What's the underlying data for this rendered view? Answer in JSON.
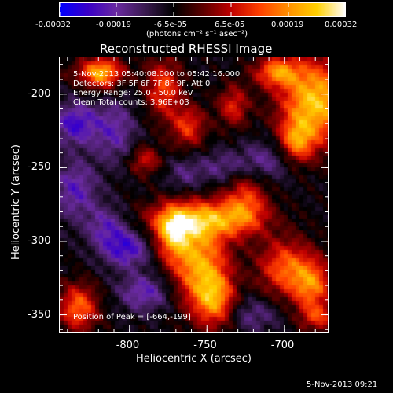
{
  "colorbar": {
    "tick_labels": [
      "-0.00032",
      "-0.00019",
      "-6.5e-05",
      "6.5e-05",
      "0.00019",
      "0.00032"
    ],
    "units_label": "(photons cm⁻² s⁻¹ asec⁻²)"
  },
  "title": "Reconstructed RHESSI Image",
  "info_lines": [
    "5-Nov-2013 05:40:08.000 to 05:42:16.000",
    "Detectors: 3F 5F 6F 7F 8F 9F, Att 0",
    "Energy Range: 25.0 - 50.0 keV",
    "Clean     Total counts: 3.96E+03"
  ],
  "peak_label": "Position of Peak = [-664,-199]",
  "footer_timestamp": "5-Nov-2013 09:21",
  "colors": {
    "background": "#000000",
    "frame": "#ffffff",
    "colormap": [
      "#0000ff",
      "#3a00c8",
      "#6a2aa0",
      "#3a1a50",
      "#000000",
      "#5a0000",
      "#c00000",
      "#ff4000",
      "#ff9000",
      "#ffd000",
      "#ffffff"
    ]
  },
  "chart_data": {
    "type": "heatmap",
    "title": "Reconstructed RHESSI Image",
    "xlabel": "Heliocentric X (arcsec)",
    "ylabel": "Heliocentric Y (arcsec)",
    "xlim": [
      -845,
      -672
    ],
    "ylim": [
      -362,
      -175
    ],
    "x_ticks": [
      -800,
      -750,
      -700
    ],
    "y_ticks": [
      -200,
      -250,
      -300,
      -350
    ],
    "peak": {
      "x": -664,
      "y": -199
    },
    "colorbar_range": [
      -0.00032,
      0.00032
    ],
    "grid": false,
    "image_source_components": [
      {
        "x": -680,
        "y": -205,
        "amp": 1.0,
        "sx": 16,
        "sy": 20
      },
      {
        "x": -705,
        "y": -185,
        "amp": 0.7,
        "sx": 10,
        "sy": 7
      },
      {
        "x": -692,
        "y": -232,
        "amp": 0.65,
        "sx": 8,
        "sy": 10
      },
      {
        "x": -752,
        "y": -285,
        "amp": 0.8,
        "sx": 24,
        "sy": 9
      },
      {
        "x": -772,
        "y": -295,
        "amp": 0.75,
        "sx": 8,
        "sy": 12
      },
      {
        "x": -755,
        "y": -315,
        "amp": 0.85,
        "sx": 13,
        "sy": 20
      },
      {
        "x": -745,
        "y": -340,
        "amp": 0.7,
        "sx": 9,
        "sy": 13
      },
      {
        "x": -725,
        "y": -272,
        "amp": 0.55,
        "sx": 10,
        "sy": 14
      },
      {
        "x": -700,
        "y": -318,
        "amp": 0.65,
        "sx": 12,
        "sy": 14
      },
      {
        "x": -682,
        "y": -330,
        "amp": 0.7,
        "sx": 9,
        "sy": 13
      },
      {
        "x": -678,
        "y": -352,
        "amp": 0.45,
        "sx": 8,
        "sy": 6
      },
      {
        "x": -818,
        "y": -186,
        "amp": 0.6,
        "sx": 8,
        "sy": 8
      },
      {
        "x": -778,
        "y": -196,
        "amp": 0.6,
        "sx": 8,
        "sy": 14
      },
      {
        "x": -762,
        "y": -222,
        "amp": 0.55,
        "sx": 8,
        "sy": 10
      },
      {
        "x": -733,
        "y": -208,
        "amp": 0.5,
        "sx": 7,
        "sy": 10
      },
      {
        "x": -790,
        "y": -245,
        "amp": 0.45,
        "sx": 7,
        "sy": 7
      },
      {
        "x": -833,
        "y": -345,
        "amp": 0.7,
        "sx": 9,
        "sy": 11
      },
      {
        "x": -820,
        "y": -185,
        "amp": 0.35,
        "sx": 14,
        "sy": 6
      },
      {
        "x": -835,
        "y": -220,
        "amp": -0.55,
        "sx": 10,
        "sy": 10
      },
      {
        "x": -810,
        "y": -225,
        "amp": -0.4,
        "sx": 10,
        "sy": 15
      },
      {
        "x": -835,
        "y": -265,
        "amp": -0.45,
        "sx": 10,
        "sy": 14
      },
      {
        "x": -802,
        "y": -305,
        "amp": -0.55,
        "sx": 11,
        "sy": 9
      },
      {
        "x": -815,
        "y": -290,
        "amp": -0.4,
        "sx": 9,
        "sy": 10
      },
      {
        "x": -790,
        "y": -335,
        "amp": -0.45,
        "sx": 12,
        "sy": 9
      },
      {
        "x": -712,
        "y": -245,
        "amp": -0.35,
        "sx": 12,
        "sy": 10
      },
      {
        "x": -740,
        "y": -250,
        "amp": -0.3,
        "sx": 12,
        "sy": 8
      },
      {
        "x": -720,
        "y": -350,
        "amp": -0.3,
        "sx": 12,
        "sy": 8
      },
      {
        "x": -765,
        "y": -255,
        "amp": -0.25,
        "sx": 8,
        "sy": 8
      }
    ],
    "image_baseline": -0.22
  }
}
